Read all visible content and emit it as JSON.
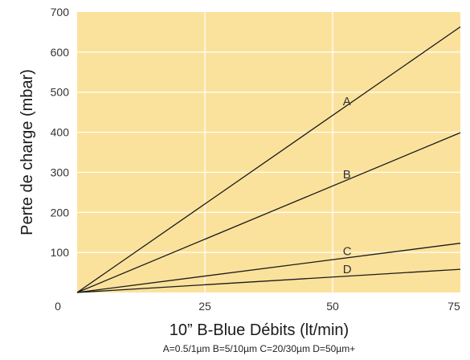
{
  "chart_data": {
    "type": "line",
    "title": "",
    "xlabel": "10” B-Blue Débits (lt/min)",
    "ylabel": "Perte de charge  (mbar)",
    "legend_note": "A=0.5/1µm B=5/10µm C=20/30µm D=50µm+",
    "xlim": [
      0,
      75
    ],
    "ylim": [
      0,
      700
    ],
    "x_ticks": [
      0,
      25,
      50,
      75
    ],
    "y_ticks": [
      100,
      200,
      300,
      400,
      500,
      600,
      700
    ],
    "grid": true,
    "colors": {
      "plot_background": "#FBE29C",
      "grid": "#FFFFFF",
      "line": "#1A1A1A"
    },
    "series": [
      {
        "name": "A",
        "x": [
          0,
          75
        ],
        "y": [
          0,
          663
        ]
      },
      {
        "name": "B",
        "x": [
          0,
          75
        ],
        "y": [
          0,
          399
        ]
      },
      {
        "name": "C",
        "x": [
          0,
          75
        ],
        "y": [
          0,
          123
        ]
      },
      {
        "name": "D",
        "x": [
          0,
          75
        ],
        "y": [
          0,
          58
        ]
      }
    ]
  }
}
